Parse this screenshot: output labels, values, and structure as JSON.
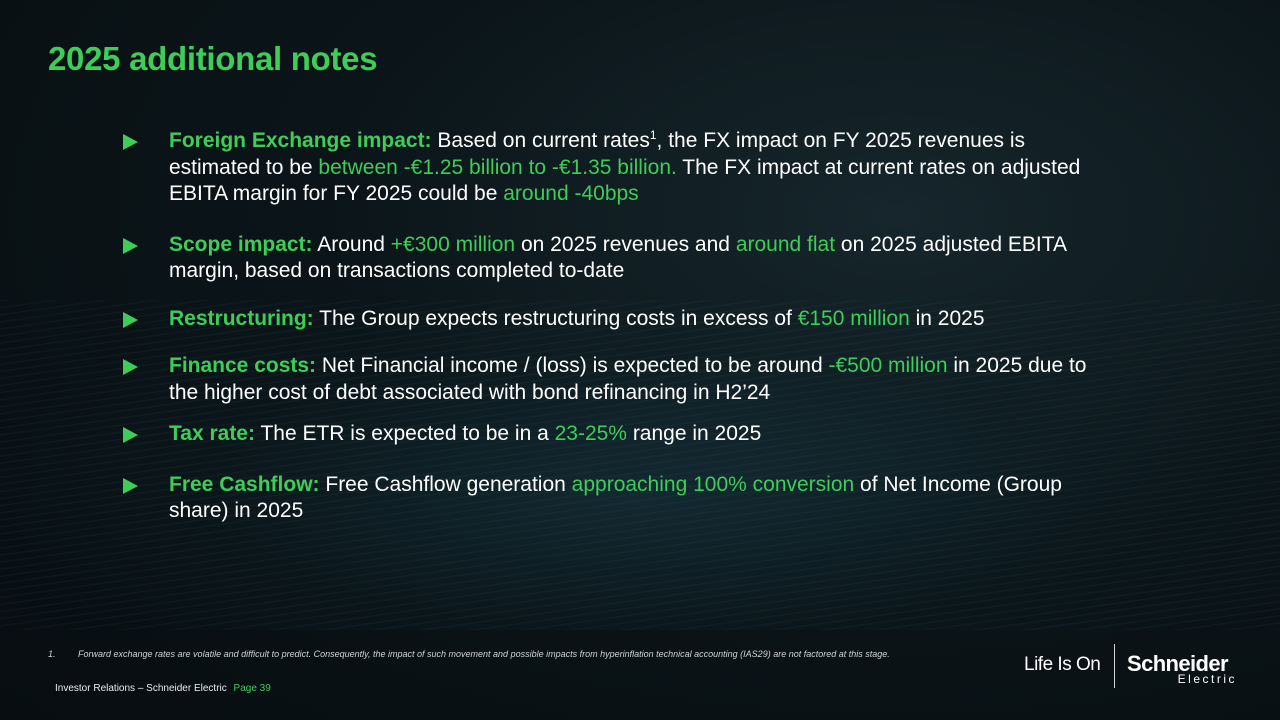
{
  "slide": {
    "title": "2025 additional notes"
  },
  "bullets": [
    {
      "label": "Foreign Exchange impact:",
      "t1": " Based on current rates",
      "sup": "1",
      "t2": ", the FX impact on FY 2025 revenues is estimated to be ",
      "h1": "between -€1.25 billion to -€1.35 billion.",
      "t3": " The FX impact at current rates on adjusted EBITA margin for FY 2025 could be ",
      "h2": "around -40bps"
    },
    {
      "label": "Scope impact:",
      "t1": " Around ",
      "h1": "+€300 million",
      "t2": " on 2025 revenues and ",
      "h2": "around flat",
      "t3": " on 2025 adjusted EBITA margin, based on transactions completed to-date"
    },
    {
      "label": "Restructuring:",
      "t1": " The Group expects restructuring costs in excess of ",
      "h1": "€150 million",
      "t2": " in 2025"
    },
    {
      "label": "Finance costs:",
      "t1": " Net Financial income / (loss) is expected to be around ",
      "h1": "-€500 million",
      "t2": " in 2025 due to the higher cost of debt associated with bond refinancing in H2’24"
    },
    {
      "label": "Tax rate:",
      "t1": " The ETR is expected to be in a ",
      "h1": "23-25%",
      "t2": " range in 2025"
    },
    {
      "label": "Free Cashflow:",
      "t1": " Free Cashflow generation ",
      "h1": "approaching 100% conversion",
      "t2": " of Net Income (Group share) in 2025"
    }
  ],
  "footnote": {
    "number": "1.",
    "text": "Forward exchange rates are volatile and difficult to predict. Consequently, the impact of such movement and possible impacts from hyperinflation technical accounting (IAS29) are not factored at this stage."
  },
  "footer": {
    "source": "Investor Relations – Schneider Electric",
    "page": "Page 39"
  },
  "branding": {
    "tagline": "Life Is On",
    "logo_word": "Schneider",
    "logo_sub": "Electric"
  },
  "colors": {
    "accent": "#3dcd58",
    "background": "#0b1519",
    "text": "#ffffff"
  },
  "icons": {
    "bullet": "triangle-right-icon"
  }
}
